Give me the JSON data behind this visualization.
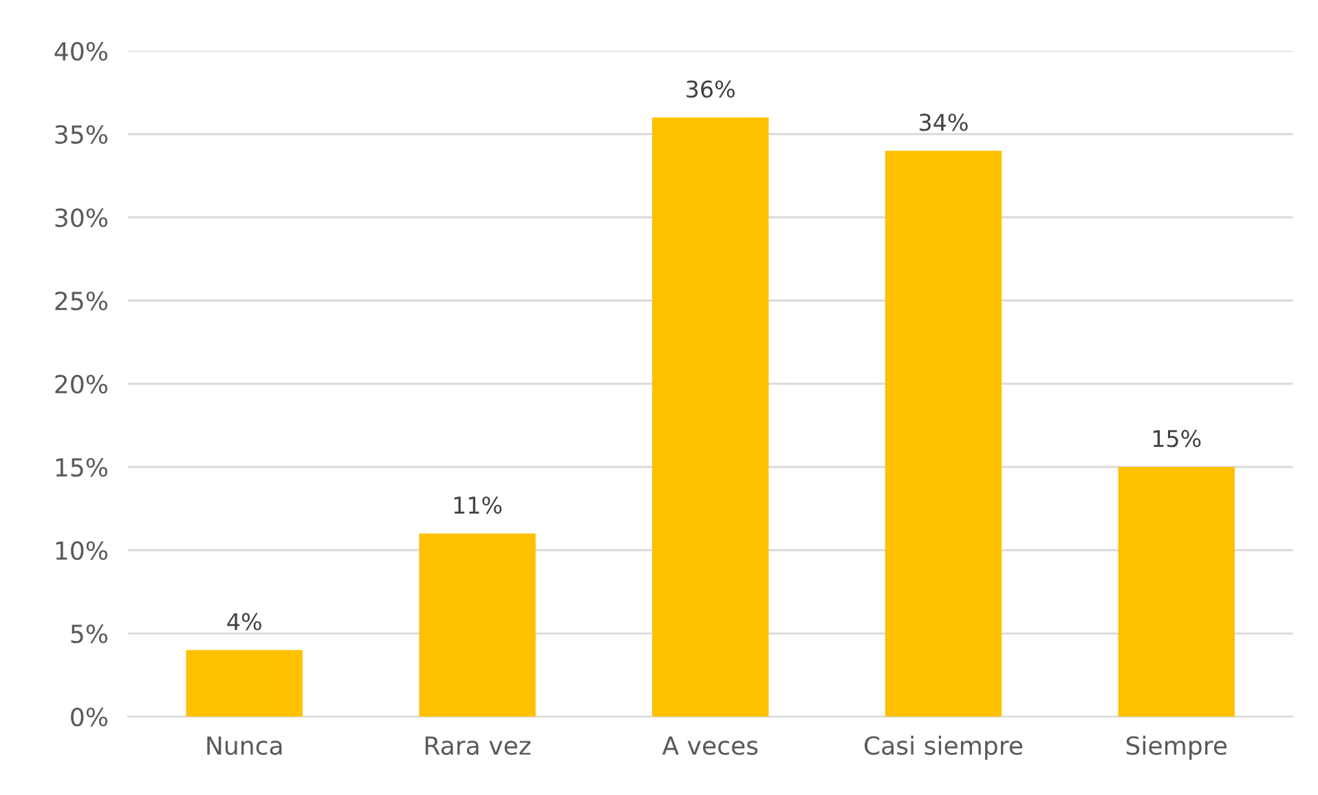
{
  "chart_data": {
    "type": "bar",
    "categories": [
      "Nunca",
      "Rara vez",
      "A veces",
      "Casi siempre",
      "Siempre"
    ],
    "values": [
      4,
      11,
      36,
      34,
      15
    ],
    "value_labels": [
      "4%",
      "11%",
      "36%",
      "34%",
      "15%"
    ],
    "color": "#ffc000",
    "ylim": [
      0,
      40
    ],
    "yticks": [
      {
        "value": 0,
        "label": "0%"
      },
      {
        "value": 5,
        "label": "5%"
      },
      {
        "value": 10,
        "label": "10%"
      },
      {
        "value": 15,
        "label": "15%"
      },
      {
        "value": 20,
        "label": "20%"
      },
      {
        "value": 25,
        "label": "25%"
      },
      {
        "value": 30,
        "label": "30%"
      },
      {
        "value": 35,
        "label": "35%"
      },
      {
        "value": 40,
        "label": "40%"
      }
    ],
    "grid": "y"
  }
}
